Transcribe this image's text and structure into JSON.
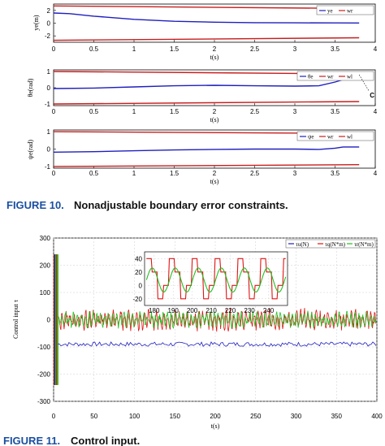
{
  "chart_data": [
    {
      "type": "line",
      "ylabel": "ye(m)",
      "xlabel": "t(s)",
      "xlim": [
        0,
        4
      ],
      "ylim": [
        -3,
        3
      ],
      "x_ticks": [
        "0",
        "0.5",
        "1",
        "1.5",
        "2",
        "2.5",
        "3",
        "3.5",
        "4"
      ],
      "y_ticks": [
        "2",
        "0",
        "-2"
      ],
      "legend": [
        "ye",
        "wr"
      ],
      "series": [
        {
          "name": "ye",
          "color": "#1f1fbf",
          "x": [
            0,
            0.2,
            0.5,
            1.0,
            1.5,
            2.0,
            2.5,
            3.0,
            3.5,
            3.8
          ],
          "y": [
            1.6,
            1.5,
            1.1,
            0.6,
            0.3,
            0.15,
            0.08,
            0.05,
            0.04,
            0.03
          ]
        },
        {
          "name": "wr",
          "color": "#c81e1e",
          "x": [
            0,
            3.8
          ],
          "y": [
            2.7,
            2.3
          ]
        },
        {
          "name": "wl",
          "color": "#c81e1e",
          "x": [
            0,
            3.8
          ],
          "y": [
            -2.7,
            -2.3
          ]
        }
      ]
    },
    {
      "type": "line",
      "ylabel": "θe(rad)",
      "xlabel": "t(s)",
      "xlim": [
        0,
        4
      ],
      "ylim": [
        -1.1,
        1.1
      ],
      "x_ticks": [
        "0",
        "0.5",
        "1",
        "1.5",
        "2",
        "2.5",
        "3",
        "3.5",
        "4"
      ],
      "y_ticks": [
        "1",
        "0",
        "-1"
      ],
      "legend": [
        "θe",
        "wr",
        "wl"
      ],
      "annotation": "C",
      "series": [
        {
          "name": "θe",
          "color": "#1f1fbf",
          "x": [
            0,
            0.5,
            1.0,
            1.5,
            2.0,
            2.5,
            3.0,
            3.3,
            3.5,
            3.7,
            3.8
          ],
          "y": [
            -0.05,
            -0.02,
            0.05,
            0.12,
            0.15,
            0.12,
            0.1,
            0.12,
            0.35,
            0.65,
            0.8
          ]
        },
        {
          "name": "wr",
          "color": "#c81e1e",
          "x": [
            0,
            3.8
          ],
          "y": [
            1.0,
            0.85
          ]
        },
        {
          "name": "wl",
          "color": "#c81e1e",
          "x": [
            0,
            3.8
          ],
          "y": [
            -1.0,
            -0.85
          ]
        }
      ]
    },
    {
      "type": "line",
      "ylabel": "ψe(rad)",
      "xlabel": "t(s)",
      "xlim": [
        0,
        4
      ],
      "ylim": [
        -1.1,
        1.1
      ],
      "x_ticks": [
        "0",
        "0.5",
        "1",
        "1.5",
        "2",
        "2.5",
        "3",
        "3.5",
        "4"
      ],
      "y_ticks": [
        "1",
        "0",
        "-1"
      ],
      "legend": [
        "ψe",
        "wr",
        "wl"
      ],
      "series": [
        {
          "name": "ψe",
          "color": "#1f1fbf",
          "x": [
            0,
            0.5,
            1.0,
            1.5,
            2.0,
            2.5,
            3.0,
            3.3,
            3.5,
            3.6,
            3.8
          ],
          "y": [
            -0.18,
            -0.15,
            -0.1,
            -0.05,
            -0.02,
            0.0,
            0.0,
            -0.02,
            0.05,
            0.12,
            0.12
          ]
        },
        {
          "name": "wr",
          "color": "#c81e1e",
          "x": [
            0,
            3.8
          ],
          "y": [
            1.0,
            0.9
          ]
        },
        {
          "name": "wl",
          "color": "#c81e1e",
          "x": [
            0,
            3.8
          ],
          "y": [
            -1.0,
            -0.9
          ]
        }
      ]
    },
    {
      "type": "line",
      "ylabel": "Control input τ",
      "xlabel": "t(s)",
      "xlim": [
        0,
        400
      ],
      "ylim": [
        -300,
        300
      ],
      "x_ticks": [
        "0",
        "50",
        "100",
        "150",
        "200",
        "250",
        "300",
        "350",
        "400"
      ],
      "y_ticks": [
        "300",
        "200",
        "100",
        "0",
        "-100",
        "-200",
        "-300"
      ],
      "legend": [
        "τu(N)",
        "τq(N*m)",
        "τr(N*m)"
      ],
      "series": [
        {
          "name": "τu(N)",
          "color": "#1f1fbf",
          "mean": -90,
          "amplitude": 8
        },
        {
          "name": "τq(N*m)",
          "color": "#e01414",
          "mean": 0,
          "amplitude": 40
        },
        {
          "name": "τr(N*m)",
          "color": "#22c022",
          "mean": 0,
          "amplitude": 30
        }
      ],
      "inset": {
        "xlim": [
          175,
          250
        ],
        "ylim": [
          -30,
          50
        ],
        "x_ticks": [
          "180",
          "190",
          "200",
          "210",
          "220",
          "230",
          "240"
        ],
        "y_ticks": [
          "40",
          "20",
          "0",
          "-20"
        ]
      }
    }
  ],
  "captions": {
    "fig10_label": "FIGURE 10.",
    "fig10_text": "Nonadjustable boundary error constraints.",
    "fig11_label": "FIGURE 11.",
    "fig11_text": "Control input."
  }
}
